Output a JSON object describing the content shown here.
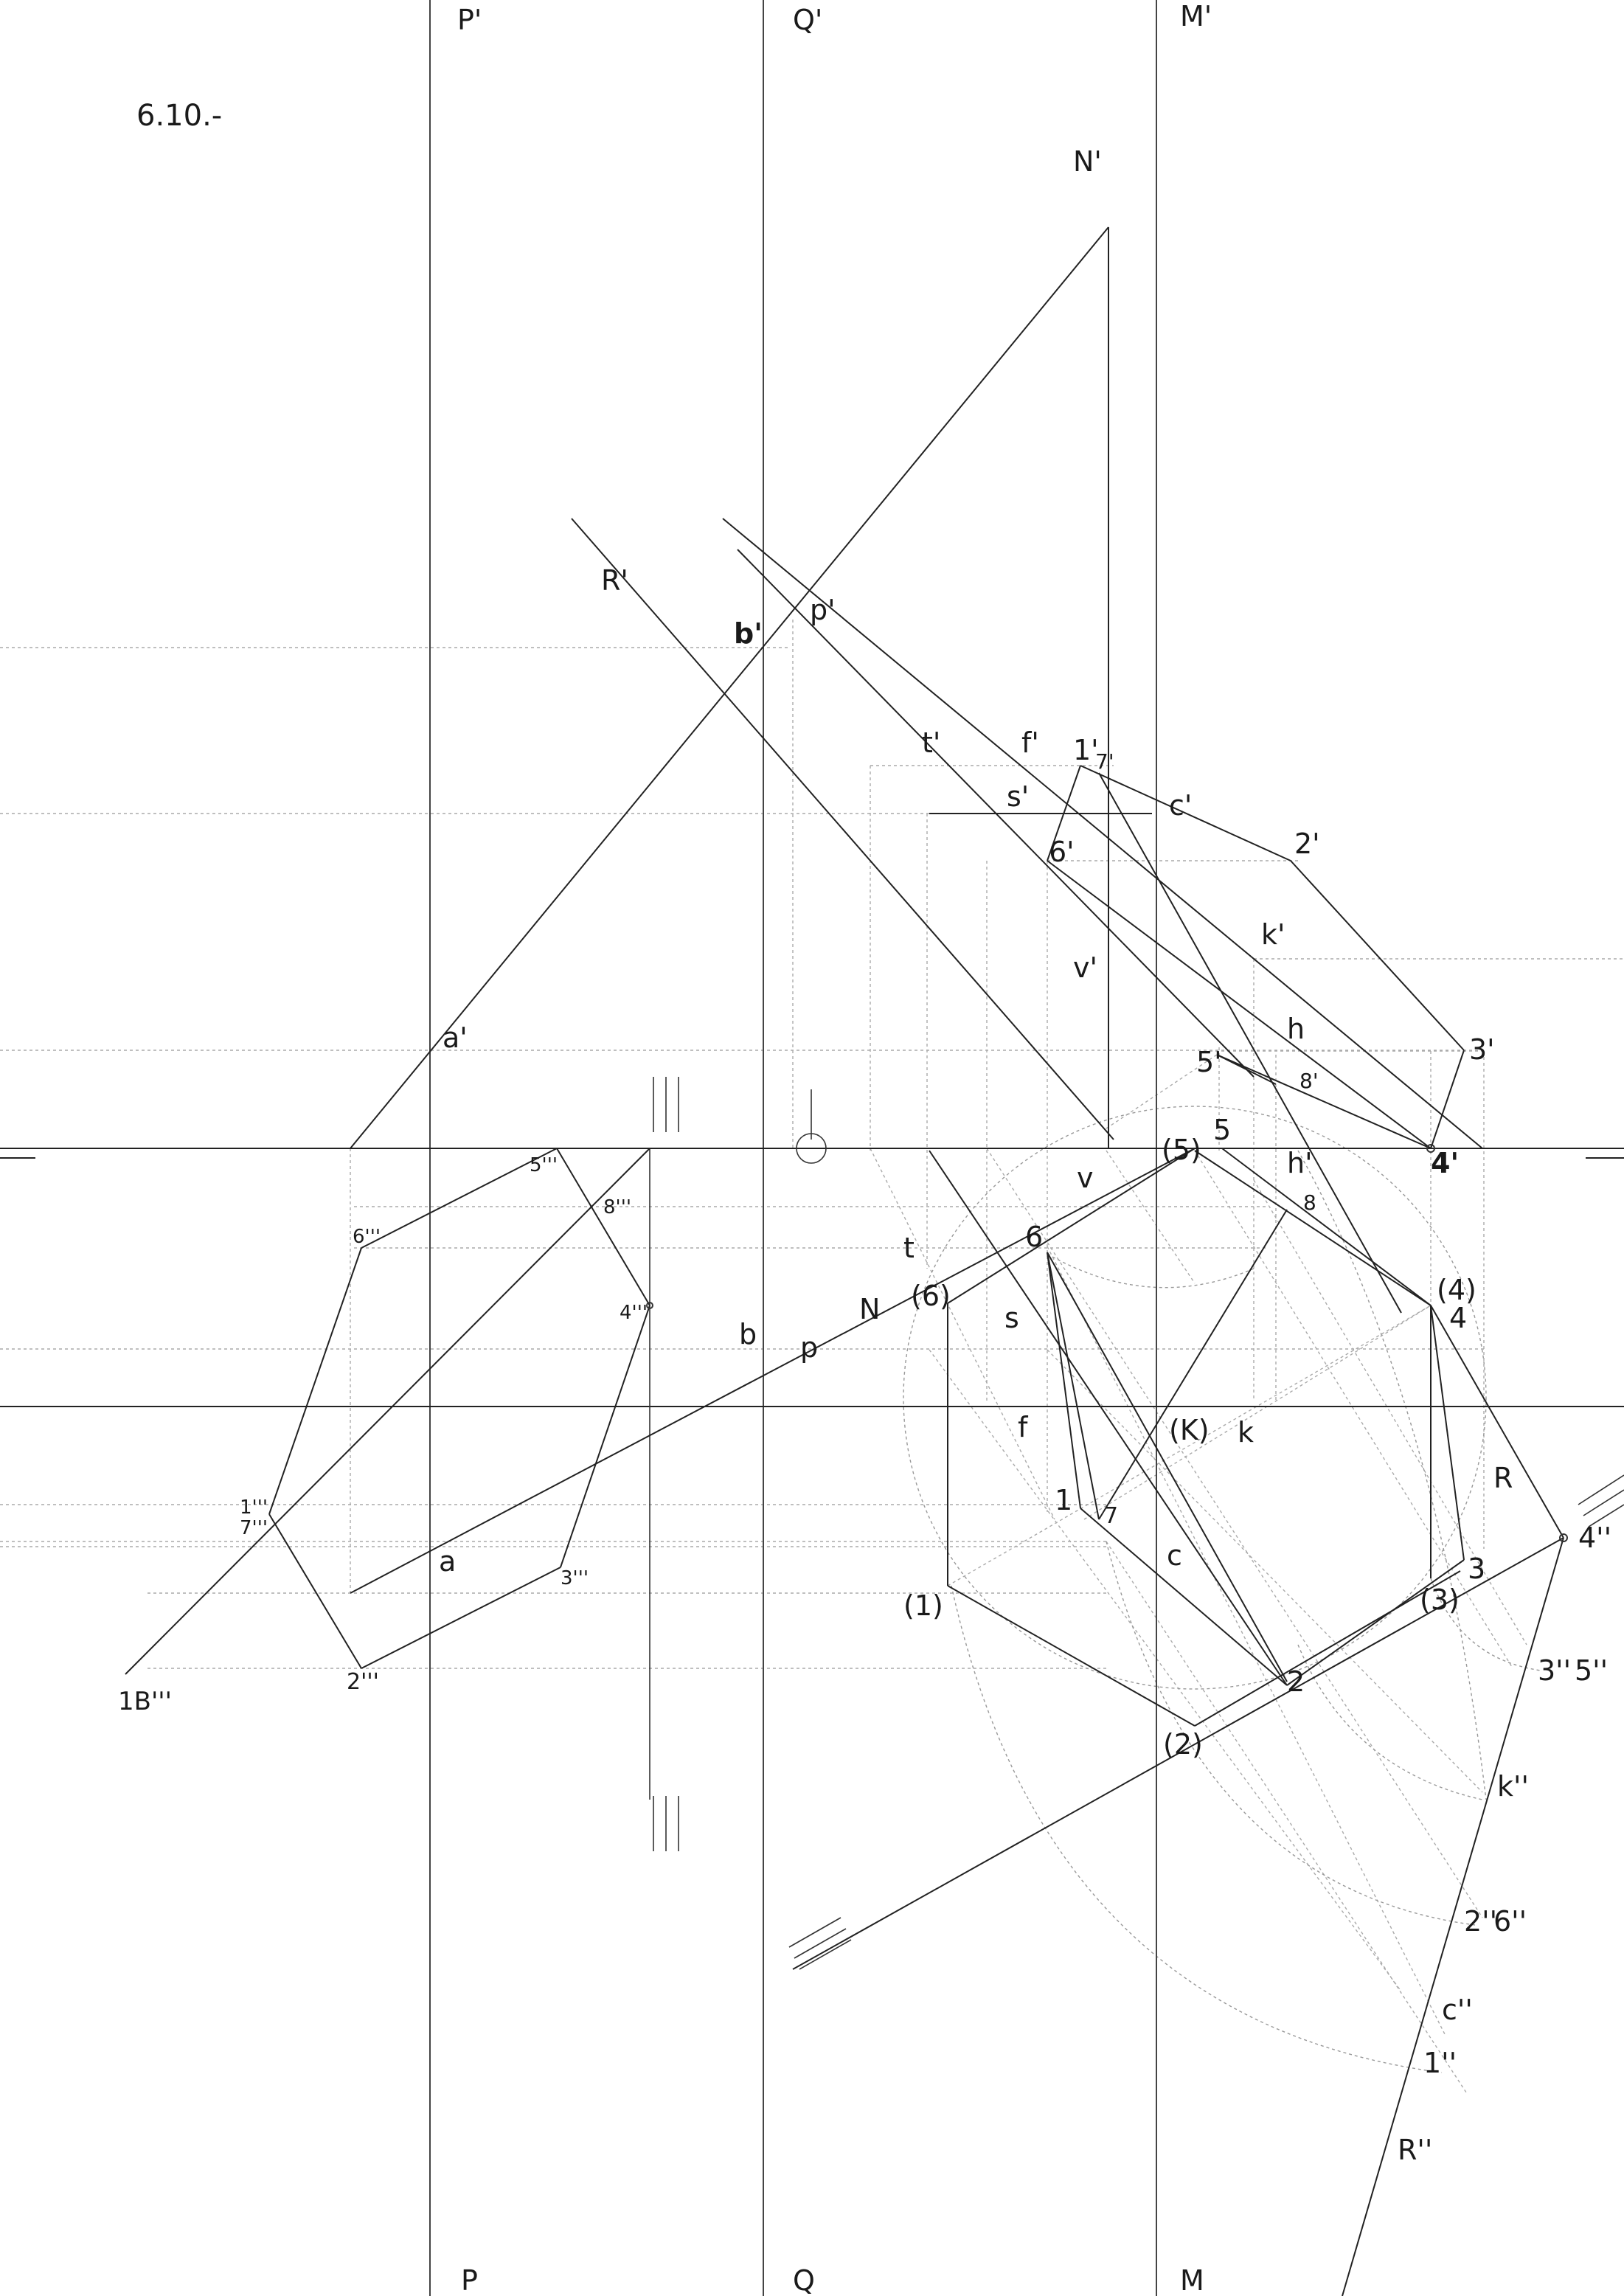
{
  "title": "6.10.-",
  "planes": {
    "p_top": "P'",
    "q_top": "Q'",
    "m_top": "M'",
    "p_bot": "P",
    "q_bot": "Q",
    "m_bot": "M",
    "n_top": "N'",
    "n_low": "N"
  },
  "labels": {
    "r_prime": "R'",
    "b_prime": "b'",
    "p_prime": "p'",
    "t_prime": "t'",
    "f_prime": "f'",
    "one_prime": "1'",
    "seven_prime": "7'",
    "c_prime": "c'",
    "s_prime": "s'",
    "two_prime": "2'",
    "six_prime": "6'",
    "k_prime": "k'",
    "v_prime": "v'",
    "a_prime": "a'",
    "h": "h",
    "three_prime": "3'",
    "five_prime": "5'",
    "eight_prime": "8'",
    "h_prime": "h'",
    "four_prime": "4'",
    "p5": "(5)",
    "n5": "5",
    "v": "v",
    "n8": "8",
    "t": "t",
    "n6": "6",
    "p6": "(6)",
    "p4": "(4)",
    "n4": "4",
    "b": "b",
    "p": "p",
    "s": "s",
    "f": "f",
    "pK": "(K)",
    "k": "k",
    "R": "R",
    "n1": "1",
    "n7": "7",
    "c": "c",
    "p1": "(1)",
    "p3": "(3)",
    "n3": "3",
    "n2": "2",
    "p2": "(2)",
    "a": "a",
    "five_3": "5'''",
    "eight_3": "8'''",
    "six_3": "6'''",
    "four_3": "4'''",
    "one_3": "1'''",
    "seven_3": "7'''",
    "three_3": "3'''",
    "two_3": "2'''",
    "oneB_3": "1B'''",
    "four_2": "4''",
    "three_2": "3''",
    "five_2": "5''",
    "k_2": "k''",
    "two_2": "2''",
    "six_2": "6''",
    "c_2": "c''",
    "one_2": "1''",
    "R_2": "R''"
  },
  "colors": {
    "line": "#222222",
    "auxiliary": "#aaaaaa",
    "background": "#ffffff"
  }
}
